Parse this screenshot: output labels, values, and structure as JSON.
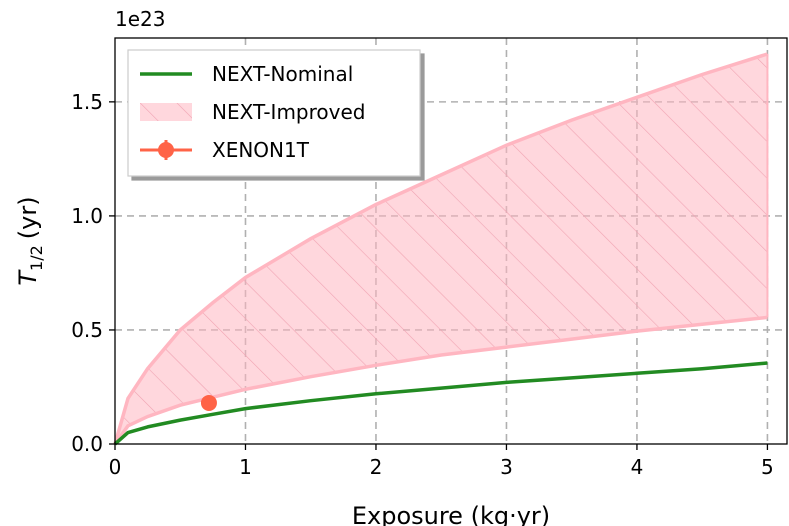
{
  "chart_data": {
    "type": "line",
    "xlabel": "Exposure (kg·yr)",
    "ylabel_main": "T",
    "ylabel_sub": "1/2",
    "ylabel_unit": "(yr)",
    "y_offset_label": "1e23",
    "xlim": [
      0,
      5.15
    ],
    "ylim": [
      0,
      1.78
    ],
    "xticks": [
      0,
      1,
      2,
      3,
      4,
      5
    ],
    "yticks": [
      0.0,
      0.5,
      1.0,
      1.5
    ],
    "xtick_labels": [
      "0",
      "1",
      "2",
      "3",
      "4",
      "5"
    ],
    "ytick_labels": [
      "0.0",
      "0.5",
      "1.0",
      "1.5"
    ],
    "grid": true,
    "legend_position": "upper-left",
    "series": [
      {
        "name": "NEXT-Nominal",
        "kind": "line",
        "color": "#228B22",
        "x": [
          0,
          0.1,
          0.25,
          0.5,
          0.75,
          1,
          1.5,
          2,
          2.5,
          3,
          3.5,
          4,
          4.5,
          5
        ],
        "y": [
          0,
          0.05,
          0.075,
          0.105,
          0.13,
          0.155,
          0.19,
          0.22,
          0.245,
          0.27,
          0.29,
          0.31,
          0.33,
          0.355
        ]
      },
      {
        "name": "NEXT-Improved",
        "kind": "band",
        "color": "#FFB6C1",
        "x": [
          0,
          0.1,
          0.25,
          0.5,
          0.75,
          1,
          1.5,
          2,
          2.5,
          3,
          3.5,
          4,
          4.5,
          5
        ],
        "y_lower": [
          0,
          0.08,
          0.12,
          0.17,
          0.205,
          0.24,
          0.295,
          0.345,
          0.39,
          0.425,
          0.46,
          0.495,
          0.525,
          0.555
        ],
        "y_upper": [
          0,
          0.2,
          0.33,
          0.5,
          0.62,
          0.73,
          0.9,
          1.05,
          1.18,
          1.31,
          1.42,
          1.52,
          1.62,
          1.71
        ]
      },
      {
        "name": "XENON1T",
        "kind": "errorbar",
        "color": "#FF6347",
        "x": [
          0.72
        ],
        "y": [
          0.18
        ],
        "yerr": [
          0.03
        ]
      }
    ]
  }
}
